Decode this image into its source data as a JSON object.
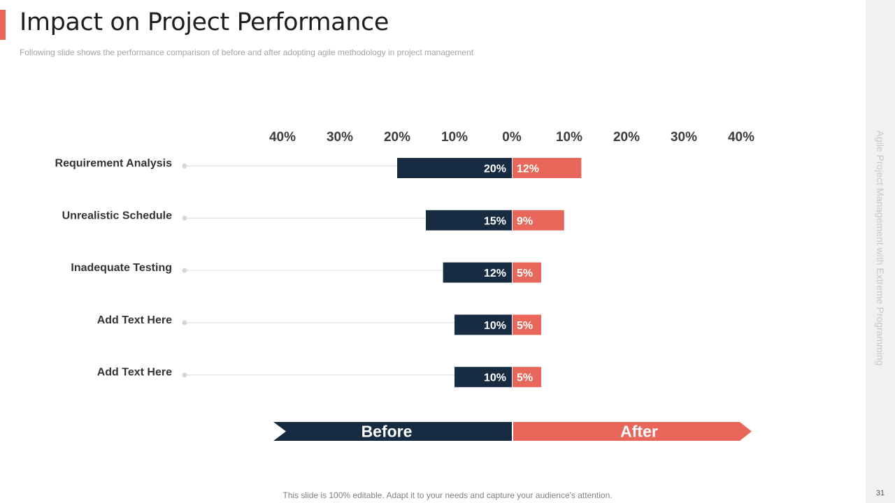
{
  "slide": {
    "title": "Impact on Project Performance",
    "subtitle": "Following slide shows the performance  comparison of before and after adopting agile methodology in project management",
    "side_label": "Agile Project Management with Extreme Programming",
    "footer": "This slide is 100% editable. Adapt it to your needs and capture your audience's attention.",
    "page_number": "31"
  },
  "colors": {
    "before": "#172c43",
    "after": "#e8665a",
    "accent": "#e8665a"
  },
  "chart_data": {
    "type": "bar",
    "orientation": "horizontal-diverging",
    "categories": [
      "Requirement Analysis",
      "Unrealistic Schedule",
      "Inadequate Testing",
      "Add Text Here",
      "Add Text Here"
    ],
    "series": [
      {
        "name": "Before",
        "values": [
          20,
          15,
          12,
          10,
          10
        ],
        "labels": [
          "20%",
          "15%",
          "12%",
          "10%",
          "10%"
        ]
      },
      {
        "name": "After",
        "values": [
          12,
          9,
          5,
          5,
          5
        ],
        "labels": [
          "12%",
          "9%",
          "5%",
          "5%",
          "5%"
        ]
      }
    ],
    "tick_labels": [
      "40%",
      "30%",
      "20%",
      "10%",
      "0%",
      "10%",
      "20%",
      "30%",
      "40%"
    ],
    "xlim": [
      -40,
      40
    ],
    "unit": "%",
    "grid": false,
    "legend": "bottom"
  }
}
